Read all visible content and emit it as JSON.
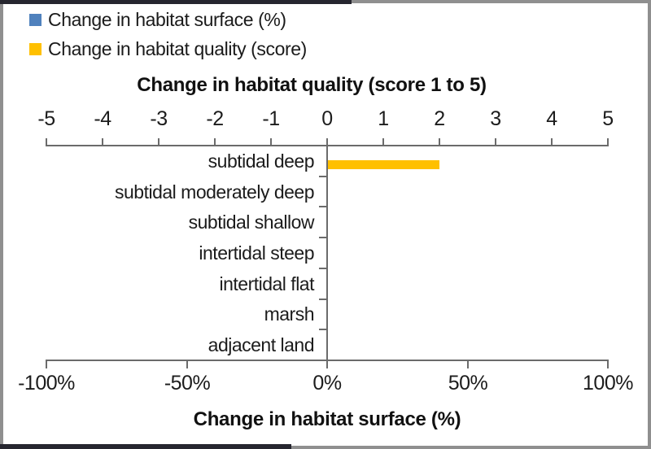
{
  "chart_data": {
    "type": "bar",
    "orientation": "horizontal",
    "grid": false,
    "legend_position": "top-left",
    "categories": [
      "subtidal deep",
      "subtidal moderately deep",
      "subtidal shallow",
      "intertidal steep",
      "intertidal flat",
      "marsh",
      "adjacent land"
    ],
    "series": [
      {
        "name": "Change in habitat surface (%)",
        "color": "#4F81BD",
        "axis": "bottom",
        "unit": "%",
        "values": [
          0,
          0,
          0,
          0,
          0,
          0,
          0
        ]
      },
      {
        "name": "Change in habitat quality (score)",
        "color": "#FFC000",
        "axis": "top",
        "unit": "score",
        "values": [
          2,
          0,
          0,
          0,
          0,
          0,
          0
        ]
      }
    ],
    "top_axis": {
      "title": "Change in habitat quality (score 1 to 5)",
      "min": -5,
      "max": 5,
      "tick_labels": [
        "-5",
        "-4",
        "-3",
        "-2",
        "-1",
        "0",
        "1",
        "2",
        "3",
        "4",
        "5"
      ],
      "tick_values": [
        -5,
        -4,
        -3,
        -2,
        -1,
        0,
        1,
        2,
        3,
        4,
        5
      ]
    },
    "bottom_axis": {
      "title": "Change in habitat surface (%)",
      "min": -100,
      "max": 100,
      "tick_labels": [
        "-100%",
        "-50%",
        "0%",
        "50%",
        "100%"
      ],
      "tick_values": [
        -100,
        -50,
        0,
        50,
        100
      ]
    }
  },
  "colors": {
    "axis_line": "#6B6B6B",
    "frame_border": "#8F8F8F",
    "frame_border_dark": "#26262F"
  }
}
